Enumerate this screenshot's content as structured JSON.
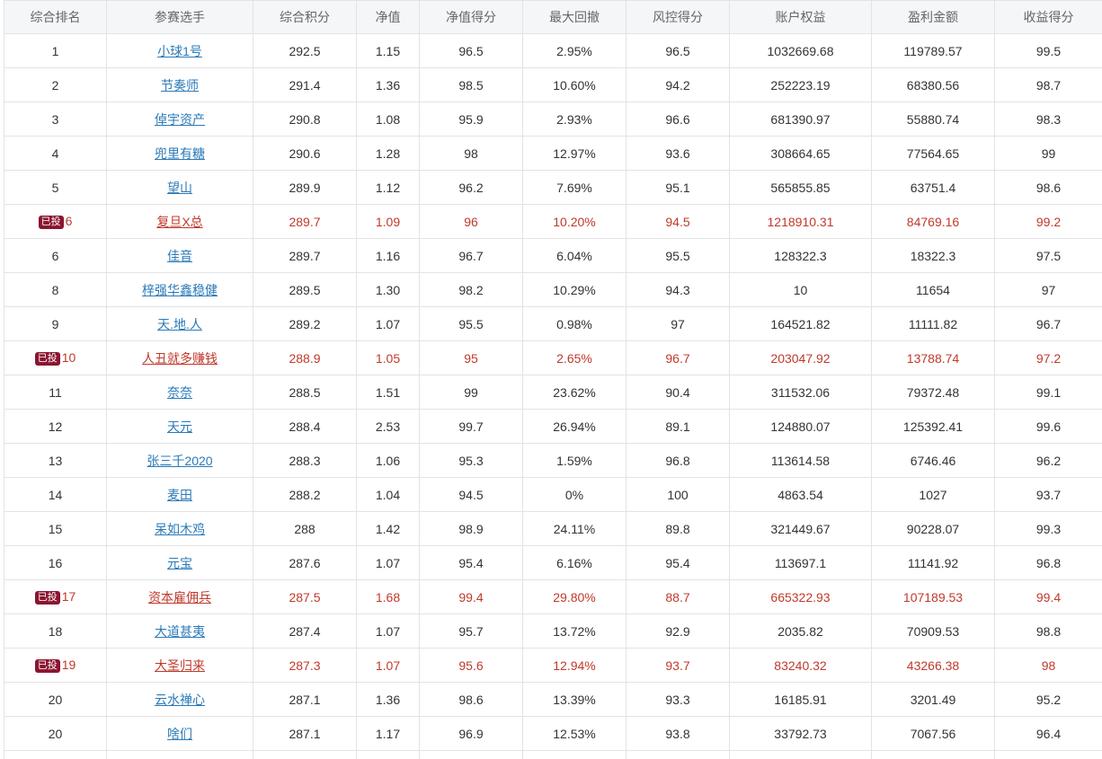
{
  "headers": [
    "综合排名",
    "参赛选手",
    "综合积分",
    "净值",
    "净值得分",
    "最大回撤",
    "风控得分",
    "账户权益",
    "盈利金额",
    "收益得分"
  ],
  "badge_label": "已投",
  "rows": [
    {
      "rank": "1",
      "badge": false,
      "name": "小球1号",
      "score": "292.5",
      "nav": "1.15",
      "nav_score": "96.5",
      "drawdown": "2.95%",
      "risk_score": "96.5",
      "equity": "1032669.68",
      "profit": "119789.57",
      "return_score": "99.5"
    },
    {
      "rank": "2",
      "badge": false,
      "name": "节奏师",
      "score": "291.4",
      "nav": "1.36",
      "nav_score": "98.5",
      "drawdown": "10.60%",
      "risk_score": "94.2",
      "equity": "252223.19",
      "profit": "68380.56",
      "return_score": "98.7"
    },
    {
      "rank": "3",
      "badge": false,
      "name": "倬宇资产",
      "score": "290.8",
      "nav": "1.08",
      "nav_score": "95.9",
      "drawdown": "2.93%",
      "risk_score": "96.6",
      "equity": "681390.97",
      "profit": "55880.74",
      "return_score": "98.3"
    },
    {
      "rank": "4",
      "badge": false,
      "name": "兜里有糖",
      "score": "290.6",
      "nav": "1.28",
      "nav_score": "98",
      "drawdown": "12.97%",
      "risk_score": "93.6",
      "equity": "308664.65",
      "profit": "77564.65",
      "return_score": "99"
    },
    {
      "rank": "5",
      "badge": false,
      "name": "望山",
      "score": "289.9",
      "nav": "1.12",
      "nav_score": "96.2",
      "drawdown": "7.69%",
      "risk_score": "95.1",
      "equity": "565855.85",
      "profit": "63751.4",
      "return_score": "98.6"
    },
    {
      "rank": "6",
      "badge": true,
      "name": "复旦X总",
      "score": "289.7",
      "nav": "1.09",
      "nav_score": "96",
      "drawdown": "10.20%",
      "risk_score": "94.5",
      "equity": "1218910.31",
      "profit": "84769.16",
      "return_score": "99.2"
    },
    {
      "rank": "6",
      "badge": false,
      "name": "佳音",
      "score": "289.7",
      "nav": "1.16",
      "nav_score": "96.7",
      "drawdown": "6.04%",
      "risk_score": "95.5",
      "equity": "128322.3",
      "profit": "18322.3",
      "return_score": "97.5"
    },
    {
      "rank": "8",
      "badge": false,
      "name": "梓强华鑫稳健",
      "score": "289.5",
      "nav": "1.30",
      "nav_score": "98.2",
      "drawdown": "10.29%",
      "risk_score": "94.3",
      "equity": "10",
      "profit": "11654",
      "return_score": "97"
    },
    {
      "rank": "9",
      "badge": false,
      "name": "天.地.人",
      "score": "289.2",
      "nav": "1.07",
      "nav_score": "95.5",
      "drawdown": "0.98%",
      "risk_score": "97",
      "equity": "164521.82",
      "profit": "11111.82",
      "return_score": "96.7"
    },
    {
      "rank": "10",
      "badge": true,
      "name": "人丑就多赚钱",
      "score": "288.9",
      "nav": "1.05",
      "nav_score": "95",
      "drawdown": "2.65%",
      "risk_score": "96.7",
      "equity": "203047.92",
      "profit": "13788.74",
      "return_score": "97.2"
    },
    {
      "rank": "11",
      "badge": false,
      "name": "奈奈",
      "score": "288.5",
      "nav": "1.51",
      "nav_score": "99",
      "drawdown": "23.62%",
      "risk_score": "90.4",
      "equity": "311532.06",
      "profit": "79372.48",
      "return_score": "99.1"
    },
    {
      "rank": "12",
      "badge": false,
      "name": "天元",
      "score": "288.4",
      "nav": "2.53",
      "nav_score": "99.7",
      "drawdown": "26.94%",
      "risk_score": "89.1",
      "equity": "124880.07",
      "profit": "125392.41",
      "return_score": "99.6"
    },
    {
      "rank": "13",
      "badge": false,
      "name": "张三千2020",
      "score": "288.3",
      "nav": "1.06",
      "nav_score": "95.3",
      "drawdown": "1.59%",
      "risk_score": "96.8",
      "equity": "113614.58",
      "profit": "6746.46",
      "return_score": "96.2"
    },
    {
      "rank": "14",
      "badge": false,
      "name": "麦田",
      "score": "288.2",
      "nav": "1.04",
      "nav_score": "94.5",
      "drawdown": "0%",
      "risk_score": "100",
      "equity": "4863.54",
      "profit": "1027",
      "return_score": "93.7"
    },
    {
      "rank": "15",
      "badge": false,
      "name": "呆如木鸡",
      "score": "288",
      "nav": "1.42",
      "nav_score": "98.9",
      "drawdown": "24.11%",
      "risk_score": "89.8",
      "equity": "321449.67",
      "profit": "90228.07",
      "return_score": "99.3"
    },
    {
      "rank": "16",
      "badge": false,
      "name": "元宝",
      "score": "287.6",
      "nav": "1.07",
      "nav_score": "95.4",
      "drawdown": "6.16%",
      "risk_score": "95.4",
      "equity": "113697.1",
      "profit": "11141.92",
      "return_score": "96.8"
    },
    {
      "rank": "17",
      "badge": true,
      "name": "资本雇佣兵",
      "score": "287.5",
      "nav": "1.68",
      "nav_score": "99.4",
      "drawdown": "29.80%",
      "risk_score": "88.7",
      "equity": "665322.93",
      "profit": "107189.53",
      "return_score": "99.4"
    },
    {
      "rank": "18",
      "badge": false,
      "name": "大道甚夷",
      "score": "287.4",
      "nav": "1.07",
      "nav_score": "95.7",
      "drawdown": "13.72%",
      "risk_score": "92.9",
      "equity": "2035.82",
      "profit": "70909.53",
      "return_score": "98.8"
    },
    {
      "rank": "19",
      "badge": true,
      "name": "大圣归来",
      "score": "287.3",
      "nav": "1.07",
      "nav_score": "95.6",
      "drawdown": "12.94%",
      "risk_score": "93.7",
      "equity": "83240.32",
      "profit": "43266.38",
      "return_score": "98"
    },
    {
      "rank": "20",
      "badge": false,
      "name": "云水禅心",
      "score": "287.1",
      "nav": "1.36",
      "nav_score": "98.6",
      "drawdown": "13.39%",
      "risk_score": "93.3",
      "equity": "16185.91",
      "profit": "3201.49",
      "return_score": "95.2"
    },
    {
      "rank": "20",
      "badge": false,
      "name": "啥们",
      "score": "287.1",
      "nav": "1.17",
      "nav_score": "96.9",
      "drawdown": "12.53%",
      "risk_score": "93.8",
      "equity": "33792.73",
      "profit": "7067.56",
      "return_score": "96.4"
    },
    {
      "rank": "",
      "badge": false,
      "name": "",
      "score": "",
      "nav": "",
      "nav_score": "",
      "drawdown": "",
      "risk_score": "",
      "equity": "",
      "profit": "",
      "return_score": ""
    }
  ]
}
